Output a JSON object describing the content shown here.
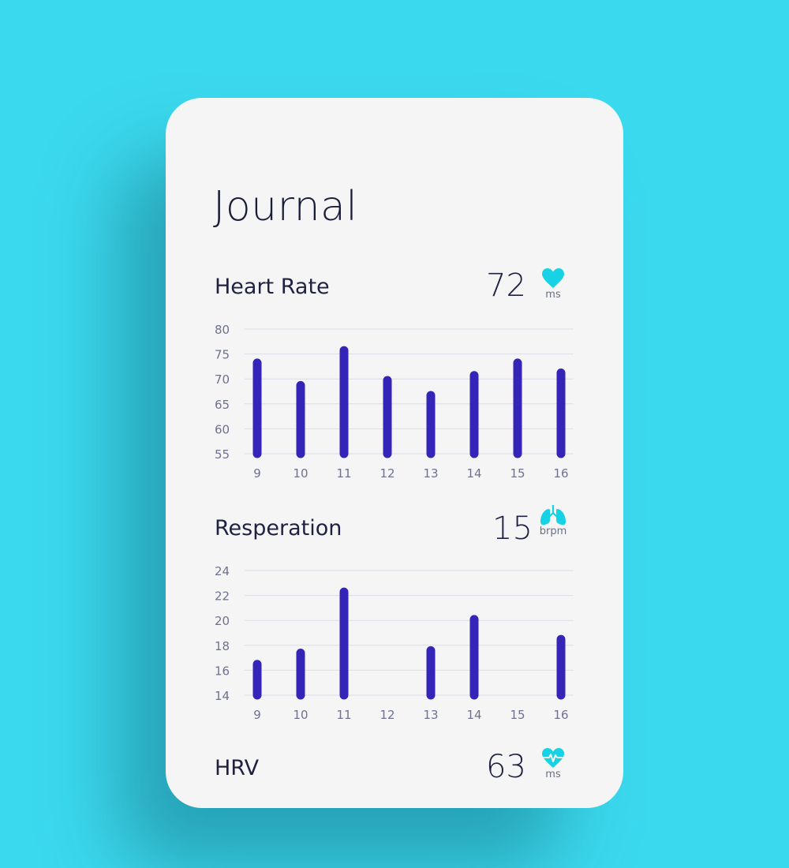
{
  "colors": {
    "background": "#3bd9ee",
    "card": "#f5f5f6",
    "bar": "#3524b8",
    "accent_icon": "#17d2e4",
    "text": "#1e2140",
    "muted": "#6e7190"
  },
  "page": {
    "title": "Journal"
  },
  "sections": [
    {
      "label": "Heart Rate",
      "value": "72",
      "icon": "heart-icon",
      "unit": "ms"
    },
    {
      "label": "Resperation",
      "value": "15",
      "icon": "lungs-icon",
      "unit": "brpm"
    },
    {
      "label": "HRV",
      "value": "63",
      "icon": "heart-pulse-icon",
      "unit": "ms"
    }
  ],
  "chart_data": [
    {
      "type": "bar",
      "categories": [
        "9",
        "10",
        "11",
        "12",
        "13",
        "14",
        "15",
        "16"
      ],
      "values": [
        74,
        69.5,
        76.5,
        70.5,
        67.5,
        71.5,
        74,
        72
      ],
      "yticks": [
        55,
        60,
        65,
        70,
        75,
        80
      ],
      "ylim": [
        55,
        80
      ],
      "grid": true
    },
    {
      "type": "bar",
      "categories": [
        "9",
        "10",
        "11",
        "12",
        "13",
        "14",
        "15",
        "16"
      ],
      "values": [
        16.8,
        17.7,
        22.6,
        null,
        17.9,
        20.4,
        null,
        18.8
      ],
      "yticks": [
        14,
        16,
        18,
        20,
        22,
        24
      ],
      "ylim": [
        14,
        24
      ],
      "grid": true
    }
  ]
}
